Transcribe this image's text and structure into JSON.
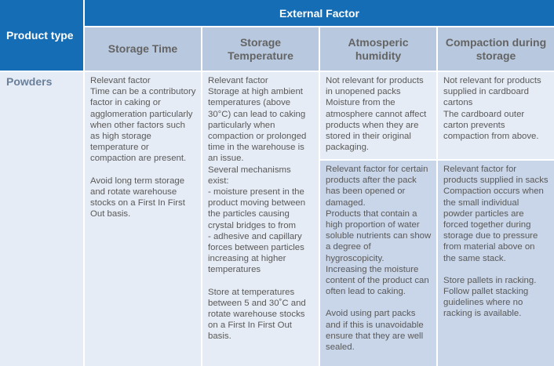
{
  "table": {
    "corner": "Product type",
    "group_header": "External Factor",
    "columns": [
      "Storage Time",
      "Storage Temperature",
      "Atmosperic humidity",
      "Compaction during storage"
    ],
    "rows": [
      {
        "product": "Powders",
        "cells": [
          [
            [
              "Relevant factor",
              "Time can be a contributory factor in caking or agglomeration particularly when other factors such as high storage temperature or compaction are present."
            ],
            [
              "Avoid long term storage and rotate warehouse stocks on a First In First Out basis."
            ]
          ],
          [
            [
              "Relevant factor",
              "Storage at high ambient temperatures (above 30°C) can lead to caking particularly when compaction or prolonged time in the warehouse is an issue.",
              "Several mechanisms exist:",
              "- moisture present in the product moving between the particles causing crystal bridges to from",
              "- adhesive and capillary forces between particles increasing at higher temperatures"
            ],
            [
              "Store at temperatures between 5 and 30˚C and rotate warehouse stocks on a First In First Out basis."
            ]
          ],
          [
            [
              "Not relevant for products in unopened packs",
              "Moisture from the atmosphere cannot affect products when they are stored in their original packaging."
            ]
          ],
          [
            [
              "Not relevant for products supplied in cardboard cartons",
              "The cardboard outer carton prevents compaction from above."
            ]
          ],
          [
            [
              "Relevant factor for certain products after the pack has been opened or damaged.",
              "Products that contain a high proportion of water soluble nutrients can show a degree of hygroscopicity.",
              "Increasing the moisture content of the product can often lead to caking."
            ],
            [
              "Avoid using part packs and if this is unavoidable ensure that they are well sealed."
            ]
          ],
          [
            [
              "Relevant factor for products supplied in sacks",
              "Compaction occurs when the small individual powder particles are forced together during storage due to pressure from material above on the same stack."
            ],
            [
              "Store pallets in racking.",
              "Follow pallet stacking guidelines where no racking is available."
            ]
          ]
        ]
      }
    ]
  }
}
